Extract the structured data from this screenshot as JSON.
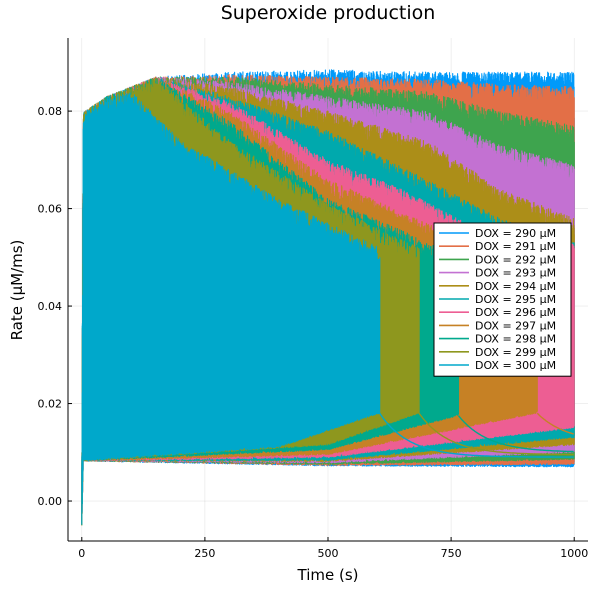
{
  "chart_data": {
    "type": "line",
    "title": "Superoxide production",
    "xlabel": "Time (s)",
    "ylabel": "Rate (μM/ms)",
    "xlim": [
      -28,
      1028
    ],
    "ylim": [
      -0.0082,
      0.095
    ],
    "xticks": [
      0,
      250,
      500,
      750,
      1000
    ],
    "xtick_labels": [
      "0",
      "250",
      "500",
      "750",
      "1000"
    ],
    "yticks": [
      0.0,
      0.02,
      0.04,
      0.06,
      0.08
    ],
    "ytick_labels": [
      "0.00",
      "0.02",
      "0.04",
      "0.06",
      "0.08"
    ],
    "grid": true,
    "legend_position": "right",
    "series": [
      {
        "name": "DOX = 290 μM",
        "color": "#009AFA",
        "collapse_time": null,
        "envelope": [
          [
            0,
            0.0795
          ],
          [
            50,
            0.083
          ],
          [
            150,
            0.087
          ],
          [
            300,
            0.088
          ],
          [
            500,
            0.0885
          ],
          [
            700,
            0.088
          ],
          [
            850,
            0.088
          ],
          [
            1000,
            0.088
          ]
        ],
        "baseline": [
          [
            0,
            0.0082
          ],
          [
            500,
            0.0072
          ],
          [
            1000,
            0.007
          ]
        ]
      },
      {
        "name": "DOX = 291 μM",
        "color": "#E36F47",
        "collapse_time": null,
        "envelope": [
          [
            0,
            0.0795
          ],
          [
            50,
            0.083
          ],
          [
            150,
            0.087
          ],
          [
            300,
            0.0875
          ],
          [
            500,
            0.087
          ],
          [
            700,
            0.0865
          ],
          [
            850,
            0.0855
          ],
          [
            1000,
            0.085
          ]
        ],
        "baseline": [
          [
            0,
            0.0082
          ],
          [
            500,
            0.0073
          ],
          [
            1000,
            0.0075
          ]
        ]
      },
      {
        "name": "DOX = 292 μM",
        "color": "#3EA44E",
        "collapse_time": null,
        "envelope": [
          [
            0,
            0.0795
          ],
          [
            50,
            0.083
          ],
          [
            150,
            0.087
          ],
          [
            300,
            0.087
          ],
          [
            500,
            0.0855
          ],
          [
            700,
            0.084
          ],
          [
            850,
            0.08
          ],
          [
            1000,
            0.077
          ]
        ],
        "baseline": [
          [
            0,
            0.0082
          ],
          [
            500,
            0.0075
          ],
          [
            1000,
            0.0085
          ]
        ]
      },
      {
        "name": "DOX = 293 μM",
        "color": "#C371D2",
        "collapse_time": null,
        "envelope": [
          [
            0,
            0.0795
          ],
          [
            50,
            0.083
          ],
          [
            150,
            0.087
          ],
          [
            300,
            0.086
          ],
          [
            500,
            0.083
          ],
          [
            700,
            0.08
          ],
          [
            850,
            0.073
          ],
          [
            1000,
            0.069
          ]
        ],
        "baseline": [
          [
            0,
            0.0082
          ],
          [
            500,
            0.0078
          ],
          [
            1000,
            0.01
          ]
        ]
      },
      {
        "name": "DOX = 294 μM",
        "color": "#AC8E18",
        "collapse_time": null,
        "envelope": [
          [
            0,
            0.0795
          ],
          [
            50,
            0.083
          ],
          [
            150,
            0.087
          ],
          [
            300,
            0.085
          ],
          [
            500,
            0.08
          ],
          [
            700,
            0.074
          ],
          [
            850,
            0.064
          ],
          [
            1000,
            0.058
          ]
        ],
        "baseline": [
          [
            0,
            0.0082
          ],
          [
            500,
            0.0081
          ],
          [
            1000,
            0.0115
          ]
        ]
      },
      {
        "name": "DOX = 295 μM",
        "color": "#00A9AD",
        "collapse_time": 1000,
        "envelope": [
          [
            0,
            0.0795
          ],
          [
            50,
            0.083
          ],
          [
            150,
            0.087
          ],
          [
            300,
            0.083
          ],
          [
            500,
            0.076
          ],
          [
            700,
            0.066
          ],
          [
            850,
            0.058
          ],
          [
            1000,
            0.053
          ]
        ],
        "baseline": [
          [
            0,
            0.0082
          ],
          [
            500,
            0.0083
          ],
          [
            1000,
            0.013
          ]
        ],
        "decay_to": 0.0005
      },
      {
        "name": "DOX = 296 μM",
        "color": "#ED5E93",
        "collapse_time": null,
        "envelope": [
          [
            0,
            0.0795
          ],
          [
            50,
            0.083
          ],
          [
            150,
            0.087
          ],
          [
            300,
            0.082
          ],
          [
            500,
            0.07
          ],
          [
            650,
            0.064
          ],
          [
            800,
            0.056
          ],
          [
            1000,
            0.053
          ]
        ],
        "baseline": [
          [
            0,
            0.0082
          ],
          [
            500,
            0.0089
          ],
          [
            1000,
            0.015
          ]
        ]
      },
      {
        "name": "DOX = 297 μM",
        "color": "#C68125",
        "collapse_time": 925,
        "envelope": [
          [
            0,
            0.0795
          ],
          [
            50,
            0.083
          ],
          [
            150,
            0.087
          ],
          [
            300,
            0.08
          ],
          [
            500,
            0.066
          ],
          [
            700,
            0.057
          ],
          [
            925,
            0.05
          ]
        ],
        "baseline": [
          [
            0,
            0.0082
          ],
          [
            500,
            0.0095
          ],
          [
            925,
            0.018
          ]
        ],
        "decay_to": 0.012
      },
      {
        "name": "DOX = 298 μM",
        "color": "#00A98D",
        "collapse_time": 765,
        "envelope": [
          [
            0,
            0.0795
          ],
          [
            50,
            0.083
          ],
          [
            150,
            0.087
          ],
          [
            300,
            0.078
          ],
          [
            500,
            0.062
          ],
          [
            640,
            0.056
          ],
          [
            765,
            0.05
          ]
        ],
        "baseline": [
          [
            0,
            0.0082
          ],
          [
            500,
            0.0105
          ],
          [
            765,
            0.0175
          ]
        ],
        "decay_to": 0.01
      },
      {
        "name": "DOX = 299 μM",
        "color": "#8E971E",
        "collapse_time": 685,
        "envelope": [
          [
            0,
            0.0795
          ],
          [
            50,
            0.083
          ],
          [
            150,
            0.087
          ],
          [
            300,
            0.074
          ],
          [
            500,
            0.061
          ],
          [
            600,
            0.056
          ],
          [
            685,
            0.052
          ]
        ],
        "baseline": [
          [
            0,
            0.0082
          ],
          [
            500,
            0.0115
          ],
          [
            685,
            0.018
          ]
        ],
        "decay_to": 0.0095
      },
      {
        "name": "DOX = 300 μM",
        "color": "#00A8CB",
        "collapse_time": 605,
        "envelope": [
          [
            0,
            0.0795
          ],
          [
            50,
            0.083
          ],
          [
            100,
            0.084
          ],
          [
            200,
            0.074
          ],
          [
            400,
            0.062
          ],
          [
            605,
            0.052
          ]
        ],
        "baseline": [
          [
            0,
            0.0082
          ],
          [
            400,
            0.011
          ],
          [
            605,
            0.018
          ]
        ],
        "decay_to": 0.009
      }
    ]
  }
}
